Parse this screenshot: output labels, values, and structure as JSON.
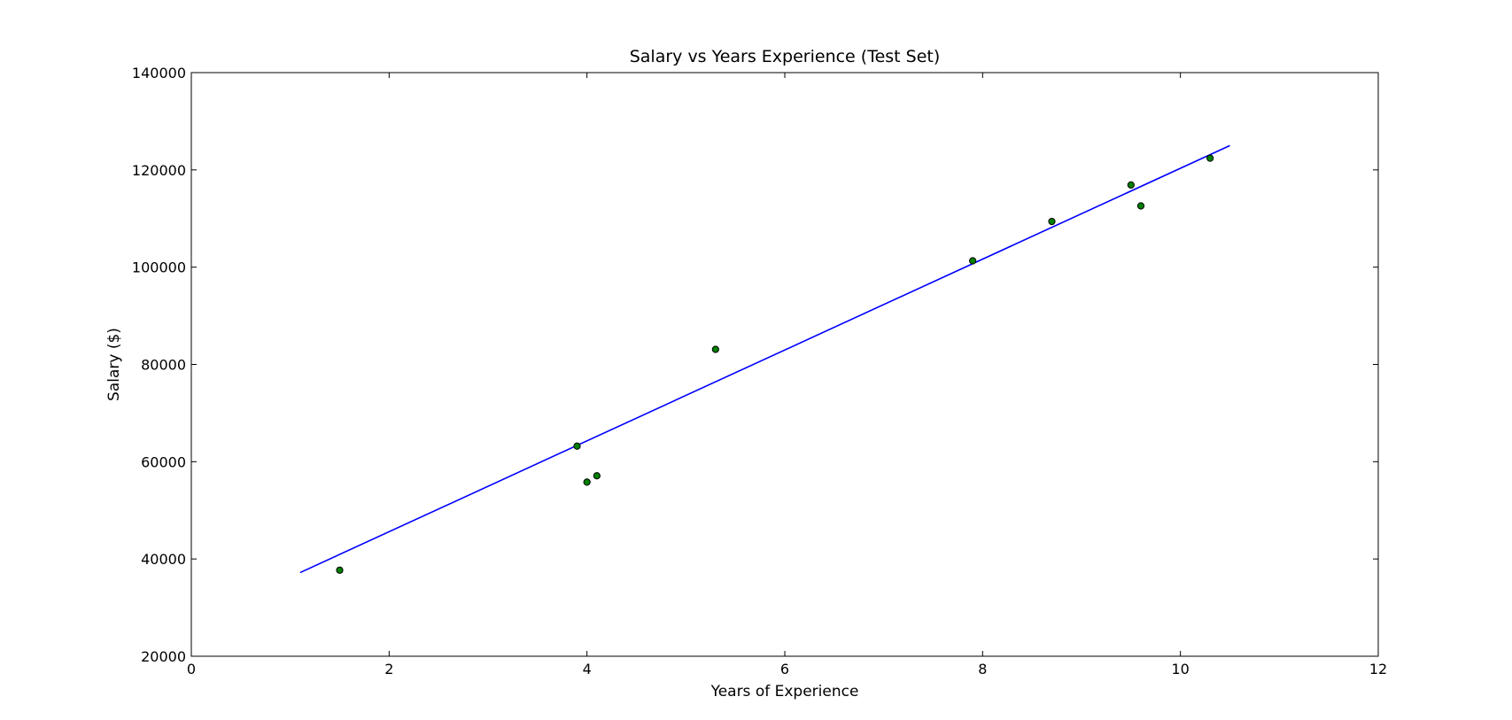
{
  "chart_data": {
    "type": "scatter",
    "title": "Salary vs Years Experience (Test Set)",
    "xlabel": "Years of Experience",
    "ylabel": "Salary ($)",
    "xlim": [
      0,
      12
    ],
    "ylim": [
      20000,
      140000
    ],
    "x_ticks": [
      0,
      2,
      4,
      6,
      8,
      10,
      12
    ],
    "y_ticks": [
      20000,
      40000,
      60000,
      80000,
      100000,
      120000,
      140000
    ],
    "x_tick_labels": [
      "0",
      "2",
      "4",
      "6",
      "8",
      "10",
      "12"
    ],
    "y_tick_labels": [
      "20000",
      "40000",
      "60000",
      "80000",
      "100000",
      "120000",
      "140000"
    ],
    "grid": false,
    "series": [
      {
        "type": "scatter",
        "color": "#008000",
        "points": [
          {
            "x": 1.5,
            "y": 37700
          },
          {
            "x": 3.9,
            "y": 63200
          },
          {
            "x": 4.0,
            "y": 55800
          },
          {
            "x": 4.1,
            "y": 57100
          },
          {
            "x": 5.3,
            "y": 83100
          },
          {
            "x": 7.9,
            "y": 101300
          },
          {
            "x": 8.7,
            "y": 109400
          },
          {
            "x": 9.5,
            "y": 116900
          },
          {
            "x": 9.6,
            "y": 112600
          },
          {
            "x": 10.3,
            "y": 122400
          }
        ]
      },
      {
        "type": "line",
        "color": "#0000ff",
        "points": [
          {
            "x": 1.1,
            "y": 37200
          },
          {
            "x": 10.5,
            "y": 125000
          }
        ]
      }
    ]
  }
}
